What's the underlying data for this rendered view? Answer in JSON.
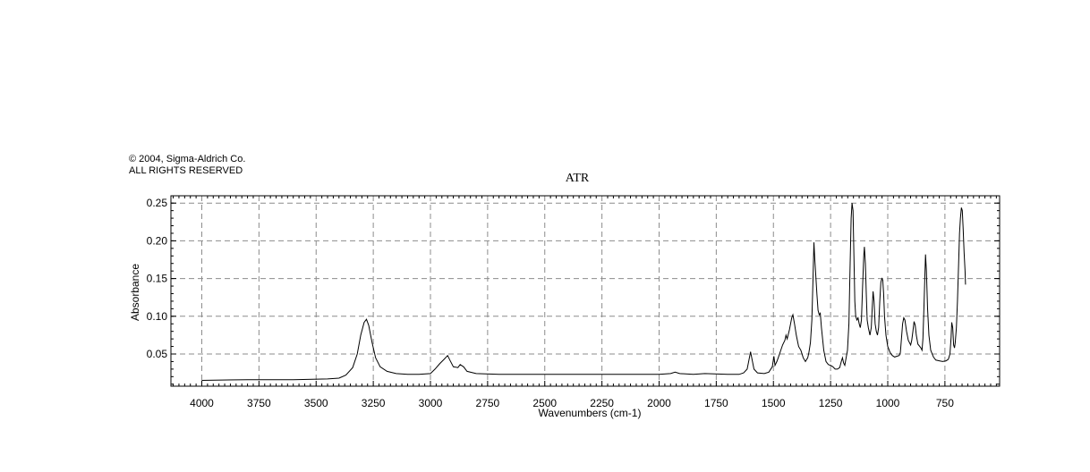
{
  "copyright": {
    "line1": "© 2004, Sigma-Aldrich Co.",
    "line2": "ALL RIGHTS RESERVED"
  },
  "chart_data": {
    "type": "line",
    "title": "ATR",
    "xlabel": "Wavenumbers (cm-1)",
    "ylabel": "Absorbance",
    "xlim": [
      4150,
      450
    ],
    "ylim": [
      0.0,
      0.26
    ],
    "x_reversed": true,
    "grid": true,
    "grid_style": "dashed",
    "x_ticks": [
      4000,
      3750,
      3500,
      3250,
      3000,
      2750,
      2500,
      2250,
      2000,
      1750,
      1500,
      1250,
      1000,
      750
    ],
    "x_tick_labels": [
      "4000",
      "3750",
      "3500",
      "3250",
      "3000",
      "2750",
      "2500",
      "2250",
      "2000",
      "1750",
      "1500",
      "1250",
      "1000",
      "750"
    ],
    "y_ticks": [
      0.05,
      0.1,
      0.15,
      0.2,
      0.25
    ],
    "y_tick_labels": [
      "0.05",
      "0.10",
      "0.15",
      "0.20",
      "0.25"
    ],
    "line_color": "#000000",
    "series": [
      {
        "points": [
          [
            4000,
            0.015
          ],
          [
            3800,
            0.016
          ],
          [
            3600,
            0.016
          ],
          [
            3450,
            0.017
          ],
          [
            3400,
            0.018
          ],
          [
            3370,
            0.022
          ],
          [
            3340,
            0.032
          ],
          [
            3320,
            0.05
          ],
          [
            3305,
            0.075
          ],
          [
            3290,
            0.092
          ],
          [
            3280,
            0.096
          ],
          [
            3270,
            0.088
          ],
          [
            3255,
            0.065
          ],
          [
            3240,
            0.045
          ],
          [
            3220,
            0.033
          ],
          [
            3190,
            0.027
          ],
          [
            3150,
            0.024
          ],
          [
            3100,
            0.023
          ],
          [
            3050,
            0.023
          ],
          [
            3000,
            0.024
          ],
          [
            2980,
            0.03
          ],
          [
            2960,
            0.037
          ],
          [
            2940,
            0.043
          ],
          [
            2925,
            0.048
          ],
          [
            2915,
            0.042
          ],
          [
            2900,
            0.033
          ],
          [
            2880,
            0.032
          ],
          [
            2870,
            0.036
          ],
          [
            2855,
            0.033
          ],
          [
            2840,
            0.027
          ],
          [
            2800,
            0.024
          ],
          [
            2700,
            0.023
          ],
          [
            2600,
            0.023
          ],
          [
            2500,
            0.023
          ],
          [
            2400,
            0.023
          ],
          [
            2300,
            0.023
          ],
          [
            2200,
            0.023
          ],
          [
            2100,
            0.023
          ],
          [
            2000,
            0.023
          ],
          [
            1950,
            0.024
          ],
          [
            1930,
            0.026
          ],
          [
            1910,
            0.024
          ],
          [
            1850,
            0.023
          ],
          [
            1800,
            0.024
          ],
          [
            1700,
            0.023
          ],
          [
            1650,
            0.023
          ],
          [
            1630,
            0.025
          ],
          [
            1615,
            0.03
          ],
          [
            1605,
            0.045
          ],
          [
            1600,
            0.053
          ],
          [
            1595,
            0.045
          ],
          [
            1585,
            0.03
          ],
          [
            1570,
            0.025
          ],
          [
            1540,
            0.024
          ],
          [
            1520,
            0.026
          ],
          [
            1505,
            0.033
          ],
          [
            1498,
            0.047
          ],
          [
            1493,
            0.035
          ],
          [
            1485,
            0.04
          ],
          [
            1478,
            0.046
          ],
          [
            1470,
            0.053
          ],
          [
            1460,
            0.062
          ],
          [
            1450,
            0.068
          ],
          [
            1445,
            0.075
          ],
          [
            1440,
            0.07
          ],
          [
            1430,
            0.082
          ],
          [
            1420,
            0.098
          ],
          [
            1415,
            0.102
          ],
          [
            1408,
            0.09
          ],
          [
            1400,
            0.075
          ],
          [
            1390,
            0.06
          ],
          [
            1380,
            0.055
          ],
          [
            1370,
            0.045
          ],
          [
            1360,
            0.04
          ],
          [
            1350,
            0.045
          ],
          [
            1345,
            0.052
          ],
          [
            1338,
            0.065
          ],
          [
            1332,
            0.095
          ],
          [
            1327,
            0.15
          ],
          [
            1323,
            0.198
          ],
          [
            1319,
            0.175
          ],
          [
            1314,
            0.15
          ],
          [
            1310,
            0.13
          ],
          [
            1305,
            0.108
          ],
          [
            1300,
            0.102
          ],
          [
            1295,
            0.104
          ],
          [
            1290,
            0.085
          ],
          [
            1280,
            0.055
          ],
          [
            1270,
            0.04
          ],
          [
            1260,
            0.036
          ],
          [
            1250,
            0.035
          ],
          [
            1240,
            0.033
          ],
          [
            1230,
            0.03
          ],
          [
            1220,
            0.03
          ],
          [
            1210,
            0.032
          ],
          [
            1203,
            0.04
          ],
          [
            1198,
            0.045
          ],
          [
            1193,
            0.038
          ],
          [
            1188,
            0.035
          ],
          [
            1182,
            0.045
          ],
          [
            1176,
            0.055
          ],
          [
            1170,
            0.09
          ],
          [
            1165,
            0.16
          ],
          [
            1160,
            0.23
          ],
          [
            1156,
            0.25
          ],
          [
            1152,
            0.24
          ],
          [
            1148,
            0.18
          ],
          [
            1144,
            0.12
          ],
          [
            1140,
            0.1
          ],
          [
            1135,
            0.095
          ],
          [
            1130,
            0.098
          ],
          [
            1125,
            0.09
          ],
          [
            1120,
            0.085
          ],
          [
            1115,
            0.095
          ],
          [
            1110,
            0.14
          ],
          [
            1105,
            0.18
          ],
          [
            1102,
            0.192
          ],
          [
            1098,
            0.17
          ],
          [
            1094,
            0.13
          ],
          [
            1090,
            0.095
          ],
          [
            1085,
            0.085
          ],
          [
            1078,
            0.075
          ],
          [
            1072,
            0.085
          ],
          [
            1068,
            0.11
          ],
          [
            1064,
            0.133
          ],
          [
            1060,
            0.12
          ],
          [
            1055,
            0.09
          ],
          [
            1050,
            0.08
          ],
          [
            1045,
            0.075
          ],
          [
            1040,
            0.085
          ],
          [
            1035,
            0.12
          ],
          [
            1030,
            0.145
          ],
          [
            1026,
            0.15
          ],
          [
            1022,
            0.148
          ],
          [
            1018,
            0.13
          ],
          [
            1014,
            0.1
          ],
          [
            1008,
            0.075
          ],
          [
            1000,
            0.06
          ],
          [
            990,
            0.052
          ],
          [
            980,
            0.048
          ],
          [
            970,
            0.046
          ],
          [
            960,
            0.047
          ],
          [
            950,
            0.048
          ],
          [
            945,
            0.052
          ],
          [
            940,
            0.07
          ],
          [
            935,
            0.09
          ],
          [
            930,
            0.098
          ],
          [
            925,
            0.095
          ],
          [
            918,
            0.08
          ],
          [
            910,
            0.068
          ],
          [
            905,
            0.065
          ],
          [
            900,
            0.062
          ],
          [
            895,
            0.068
          ],
          [
            890,
            0.08
          ],
          [
            885,
            0.093
          ],
          [
            880,
            0.088
          ],
          [
            875,
            0.075
          ],
          [
            868,
            0.063
          ],
          [
            860,
            0.06
          ],
          [
            855,
            0.058
          ],
          [
            850,
            0.055
          ],
          [
            846,
            0.07
          ],
          [
            842,
            0.11
          ],
          [
            838,
            0.15
          ],
          [
            835,
            0.182
          ],
          [
            831,
            0.16
          ],
          [
            826,
            0.11
          ],
          [
            820,
            0.075
          ],
          [
            812,
            0.055
          ],
          [
            800,
            0.046
          ],
          [
            790,
            0.042
          ],
          [
            775,
            0.041
          ],
          [
            760,
            0.04
          ],
          [
            745,
            0.041
          ],
          [
            735,
            0.043
          ],
          [
            728,
            0.05
          ],
          [
            723,
            0.072
          ],
          [
            720,
            0.092
          ],
          [
            716,
            0.085
          ],
          [
            712,
            0.062
          ],
          [
            708,
            0.058
          ],
          [
            705,
            0.065
          ],
          [
            700,
            0.085
          ],
          [
            695,
            0.12
          ],
          [
            690,
            0.17
          ],
          [
            686,
            0.21
          ],
          [
            682,
            0.23
          ],
          [
            678,
            0.244
          ],
          [
            674,
            0.24
          ],
          [
            670,
            0.215
          ],
          [
            666,
            0.185
          ],
          [
            662,
            0.16
          ],
          [
            660,
            0.142
          ]
        ]
      }
    ]
  }
}
